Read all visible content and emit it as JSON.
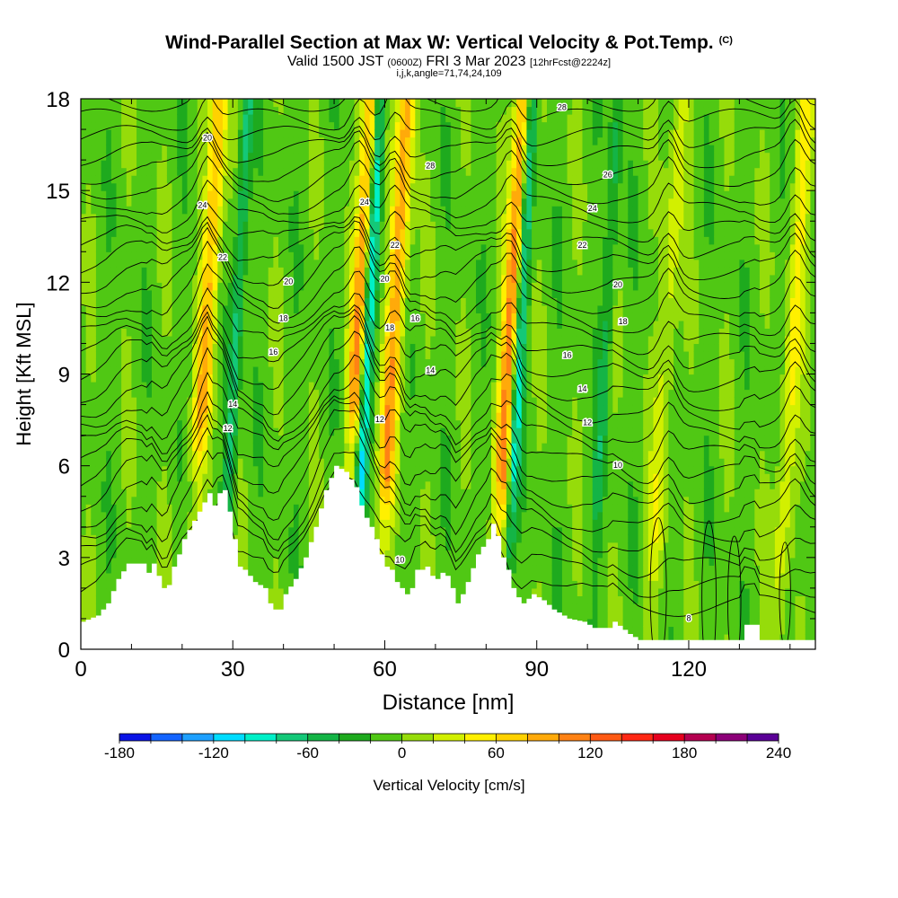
{
  "header": {
    "title": "Wind-Parallel Section at Max W: Vertical Velocity & Pot.Temp.",
    "title_tag": "(C)",
    "valid_prefix": "Valid 1500 JST",
    "valid_zulu": "(0600Z)",
    "valid_date": "FRI 3 Mar 2023",
    "forecast": "[12hrFcst@2224z]",
    "ijk": "i,j,k,angle=71,74,24,109"
  },
  "chart_data": {
    "type": "heatmap",
    "xlabel": "Distance [nm]",
    "ylabel": "Height [Kft MSL]",
    "xlim": [
      0,
      145
    ],
    "ylim": [
      0,
      18
    ],
    "x_ticks": [
      0,
      30,
      60,
      90,
      120
    ],
    "y_ticks": [
      0,
      3,
      6,
      9,
      12,
      15,
      18
    ],
    "x_minor_step": 10,
    "y_minor_step": 1,
    "field": "Vertical Velocity [cm/s]",
    "contour_field": "Potential Temperature (C)",
    "updraft_bands": [
      {
        "x": 24,
        "peak_w": 90
      },
      {
        "x": 54,
        "peak_w": 110
      },
      {
        "x": 61,
        "peak_w": 100
      },
      {
        "x": 84,
        "peak_w": 120
      },
      {
        "x": 115,
        "peak_w": 40
      },
      {
        "x": 140,
        "peak_w": 50
      }
    ],
    "downdraft_bands": [
      {
        "x": 30,
        "min_w": -60
      },
      {
        "x": 56,
        "min_w": -110
      },
      {
        "x": 86,
        "min_w": -100
      },
      {
        "x": 103,
        "min_w": -40
      }
    ],
    "terrain_kft": [
      [
        0,
        0.9
      ],
      [
        3,
        1.1
      ],
      [
        5,
        1.5
      ],
      [
        7,
        2.3
      ],
      [
        9,
        2.8
      ],
      [
        12,
        2.8
      ],
      [
        13,
        2.5
      ],
      [
        14,
        2.8
      ],
      [
        15,
        2.4
      ],
      [
        16,
        2.0
      ],
      [
        17,
        2.1
      ],
      [
        18,
        2.7
      ],
      [
        19,
        3.1
      ],
      [
        20,
        3.6
      ],
      [
        22,
        4.2
      ],
      [
        24,
        4.8
      ],
      [
        25,
        5.1
      ],
      [
        26,
        4.7
      ],
      [
        27,
        5.1
      ],
      [
        28,
        5.2
      ],
      [
        29,
        4.5
      ],
      [
        30,
        3.6
      ],
      [
        31,
        2.7
      ],
      [
        32,
        2.6
      ],
      [
        34,
        2.2
      ],
      [
        36,
        2.0
      ],
      [
        37,
        1.5
      ],
      [
        38,
        1.3
      ],
      [
        39,
        1.3
      ],
      [
        40,
        1.8
      ],
      [
        42,
        2.3
      ],
      [
        44,
        3.0
      ],
      [
        46,
        4.0
      ],
      [
        48,
        5.2
      ],
      [
        50,
        6.0
      ],
      [
        52,
        5.8
      ],
      [
        54,
        5.3
      ],
      [
        55,
        4.7
      ],
      [
        56,
        4.3
      ],
      [
        57,
        4.0
      ],
      [
        58,
        3.6
      ],
      [
        59,
        3.1
      ],
      [
        60,
        2.7
      ],
      [
        61,
        2.6
      ],
      [
        62,
        2.2
      ],
      [
        63,
        2.0
      ],
      [
        64,
        1.8
      ],
      [
        65,
        2.0
      ],
      [
        66,
        2.6
      ],
      [
        67,
        2.6
      ],
      [
        68,
        2.7
      ],
      [
        69,
        2.4
      ],
      [
        70,
        2.3
      ],
      [
        71,
        2.5
      ],
      [
        72,
        2.4
      ],
      [
        73,
        2.0
      ],
      [
        74,
        1.5
      ],
      [
        75,
        1.8
      ],
      [
        76,
        2.2
      ],
      [
        78,
        3.1
      ],
      [
        80,
        3.6
      ],
      [
        81,
        4.1
      ],
      [
        82,
        3.7
      ],
      [
        83,
        3.0
      ],
      [
        84,
        2.6
      ],
      [
        85,
        2.0
      ],
      [
        86,
        1.7
      ],
      [
        87,
        1.5
      ],
      [
        89,
        1.8
      ],
      [
        91,
        1.6
      ],
      [
        93,
        1.3
      ],
      [
        96,
        1.0
      ],
      [
        99,
        0.9
      ],
      [
        101,
        0.7
      ],
      [
        104,
        0.7
      ],
      [
        105,
        0.9
      ],
      [
        108,
        0.5
      ],
      [
        110,
        0.3
      ],
      [
        115,
        0.3
      ],
      [
        120,
        0.3
      ],
      [
        124,
        0.3
      ],
      [
        130,
        0.3
      ],
      [
        131,
        0.8
      ],
      [
        133,
        0.8
      ],
      [
        133.5,
        0.3
      ],
      [
        136,
        0.3
      ],
      [
        145,
        0.3
      ]
    ],
    "contour_labels": [
      {
        "text": "20",
        "x": 25,
        "y": 16.7
      },
      {
        "text": "24",
        "x": 24,
        "y": 14.5
      },
      {
        "text": "22",
        "x": 28,
        "y": 12.8
      },
      {
        "text": "20",
        "x": 41,
        "y": 12.0
      },
      {
        "text": "18",
        "x": 40,
        "y": 10.8
      },
      {
        "text": "16",
        "x": 38,
        "y": 9.7
      },
      {
        "text": "14",
        "x": 30,
        "y": 8.0
      },
      {
        "text": "12",
        "x": 29,
        "y": 7.2
      },
      {
        "text": "24",
        "x": 56,
        "y": 14.6
      },
      {
        "text": "22",
        "x": 62,
        "y": 13.2
      },
      {
        "text": "20",
        "x": 60,
        "y": 12.1
      },
      {
        "text": "18",
        "x": 61,
        "y": 10.5
      },
      {
        "text": "16",
        "x": 66,
        "y": 10.8
      },
      {
        "text": "14",
        "x": 69,
        "y": 9.1
      },
      {
        "text": "12",
        "x": 59,
        "y": 7.5
      },
      {
        "text": "10",
        "x": 63,
        "y": 2.9
      },
      {
        "text": "28",
        "x": 69,
        "y": 15.8
      },
      {
        "text": "28",
        "x": 95,
        "y": 17.7
      },
      {
        "text": "26",
        "x": 104,
        "y": 15.5
      },
      {
        "text": "24",
        "x": 101,
        "y": 14.4
      },
      {
        "text": "22",
        "x": 99,
        "y": 13.2
      },
      {
        "text": "20",
        "x": 106,
        "y": 11.9
      },
      {
        "text": "18",
        "x": 107,
        "y": 10.7
      },
      {
        "text": "16",
        "x": 96,
        "y": 9.6
      },
      {
        "text": "14",
        "x": 99,
        "y": 8.5
      },
      {
        "text": "12",
        "x": 100,
        "y": 7.4
      },
      {
        "text": "10",
        "x": 106,
        "y": 6.0
      },
      {
        "text": "8",
        "x": 120,
        "y": 1.0
      }
    ],
    "colorbar": {
      "label": "Vertical Velocity [cm/s]",
      "min": -180,
      "max": 240,
      "step": 20,
      "tick_labels": [
        "-180",
        "-120",
        "-60",
        "0",
        "60",
        "120",
        "180",
        "240"
      ],
      "colors": [
        "#0a14e6",
        "#1464ff",
        "#1ea0ff",
        "#00dcff",
        "#00f0c8",
        "#14c878",
        "#14b446",
        "#1eaa1e",
        "#50c814",
        "#96dc0a",
        "#d2f000",
        "#fff000",
        "#ffd200",
        "#ffaa0a",
        "#ff8214",
        "#ff5a14",
        "#ff2814",
        "#e6001e",
        "#b40050",
        "#8c0078",
        "#5a0096"
      ]
    }
  }
}
